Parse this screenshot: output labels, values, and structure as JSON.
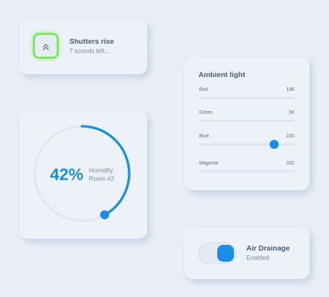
{
  "shutters": {
    "title": "Shutters rise",
    "status": "7 sconds left..."
  },
  "humidity": {
    "value": 42,
    "value_label": "42%",
    "label": "Humidity",
    "room": "Room #2"
  },
  "ambient_light": {
    "title": "Ambient light",
    "channels": [
      {
        "name": "Red",
        "value": 198
      },
      {
        "name": "Green",
        "value": 90
      },
      {
        "name": "Blue",
        "value": 220
      },
      {
        "name": "Magenta",
        "value": 202
      }
    ]
  },
  "air_drainage": {
    "title": "Air Drainage",
    "status": "Enabled"
  }
}
